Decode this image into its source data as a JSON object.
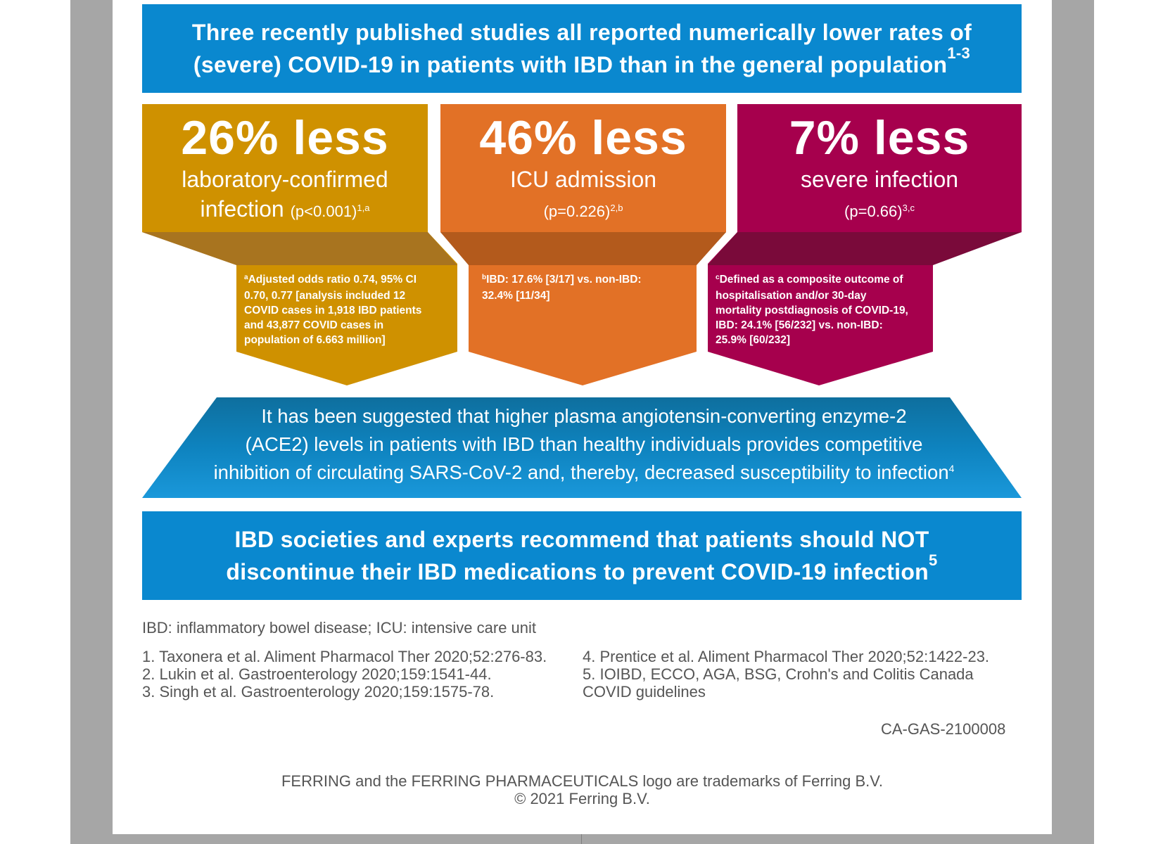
{
  "top_banner": {
    "line1": "Three recently published studies all reported numerically lower rates of",
    "line2": "(severe) COVID-19 in patients with IBD than in the general population",
    "sup": "1-3"
  },
  "stats": [
    {
      "value": "26% less",
      "label_line1": "laboratory-confirmed",
      "label_line2": "infection",
      "p_value": "(p<0.001)",
      "p_sup": "1,a",
      "note_sup": "a",
      "note": [
        "Adjusted odds ratio 0.74, 95% CI",
        "0.70, 0.77 [analysis included 12",
        "COVID cases in 1,918 IBD patients",
        "and 43,877 COVID cases in",
        "population of 6.663 million]"
      ],
      "color": "#cf9100"
    },
    {
      "value": "46% less",
      "label_line1": "ICU admission",
      "label_line2": "",
      "p_value": "(p=0.226)",
      "p_sup": "2,b",
      "note_sup": "b",
      "note": [
        "IBD: 17.6% [3/17] vs. non-IBD:",
        "32.4% [11/34]"
      ],
      "color": "#e27126"
    },
    {
      "value": "7% less",
      "label_line1": "severe infection",
      "label_line2": "",
      "p_value": "(p=0.66)",
      "p_sup": "3,c",
      "note_sup": "c",
      "note": [
        "Defined as a composite outcome of",
        "hospitalisation and/or 30-day",
        "mortality postdiagnosis of COVID-19,",
        "IBD: 24.1% [56/232] vs. non-IBD:",
        "25.9% [60/232]"
      ],
      "color": "#a6004d"
    }
  ],
  "mechanism": {
    "line1": "It has been suggested that higher plasma angiotensin-converting enzyme-2",
    "line2": "(ACE2) levels in patients with IBD than healthy individuals provides competitive",
    "line3": "inhibition of circulating SARS-CoV-2 and, thereby, decreased susceptibility to infection",
    "sup": "4"
  },
  "bottom_banner": {
    "line1": "IBD societies and experts recommend that patients should NOT",
    "line2": "discontinue their IBD medications to prevent COVID-19 infection",
    "sup": "5"
  },
  "abbreviations": "IBD: inflammatory bowel disease; ICU: intensive care unit",
  "references": {
    "left": [
      "1. Taxonera et al. Aliment Pharmacol Ther 2020;52:276-83.",
      "2. Lukin et al. Gastroenterology  2020;159:1541-44.",
      "3. Singh et al. Gastroenterology  2020;159:1575-78."
    ],
    "right": [
      "4. Prentice et al. Aliment Pharmacol Ther 2020;52:1422-23.",
      "5. IOIBD, ECCO, AGA, BSG, Crohn's and Colitis Canada",
      "COVID guidelines"
    ]
  },
  "code": "CA-GAS-2100008",
  "footer": {
    "line1": "FERRING and the FERRING PHARMACEUTICALS logo are trademarks of Ferring B.V.",
    "line2": "© 2021 Ferring B.V."
  },
  "colors": {
    "banner_blue": "#0a88cf",
    "gold": "#cf9100",
    "orange": "#e27126",
    "magenta": "#a6004d"
  }
}
